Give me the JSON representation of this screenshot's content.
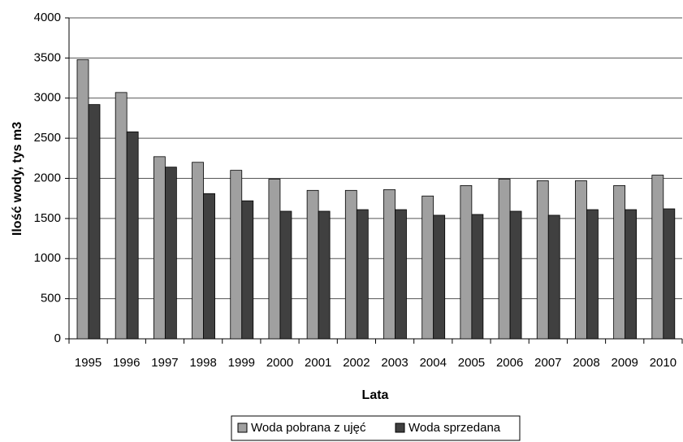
{
  "chart_data": {
    "type": "bar",
    "x_label": "Lata",
    "y_label": "Ilość wody, tys m3",
    "categories": [
      "1995",
      "1996",
      "1997",
      "1998",
      "1999",
      "2000",
      "2001",
      "2002",
      "2003",
      "2004",
      "2005",
      "2006",
      "2007",
      "2008",
      "2009",
      "2010"
    ],
    "series": [
      {
        "name": "Woda pobrana z ujęć",
        "color": "#a0a0a0",
        "values": [
          3480,
          3070,
          2270,
          2200,
          2100,
          1990,
          1850,
          1850,
          1860,
          1780,
          1910,
          1990,
          1970,
          1970,
          1910,
          2040
        ]
      },
      {
        "name": "Woda sprzedana",
        "color": "#404040",
        "values": [
          2920,
          2580,
          2140,
          1810,
          1720,
          1590,
          1590,
          1610,
          1610,
          1540,
          1550,
          1590,
          1540,
          1610,
          1610,
          1620
        ]
      }
    ],
    "ylim": [
      0,
      4000
    ],
    "yticks": [
      0,
      500,
      1000,
      1500,
      2000,
      2500,
      3000,
      3500,
      4000
    ],
    "grid": true,
    "legend": "bottom"
  }
}
